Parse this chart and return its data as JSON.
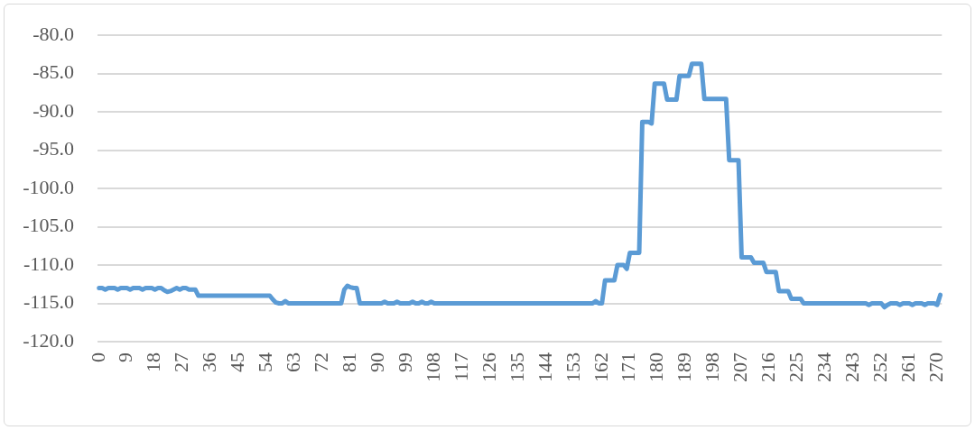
{
  "chart_data": {
    "type": "line",
    "categories": [
      "0",
      null,
      null,
      null,
      null,
      null,
      null,
      null,
      null,
      "9",
      null,
      null,
      null,
      null,
      null,
      null,
      null,
      null,
      "18",
      null,
      null,
      null,
      null,
      null,
      null,
      null,
      null,
      "27",
      null,
      null,
      null,
      null,
      null,
      null,
      null,
      null,
      "36",
      null,
      null,
      null,
      null,
      null,
      null,
      null,
      null,
      "45",
      null,
      null,
      null,
      null,
      null,
      null,
      null,
      null,
      "54",
      null,
      null,
      null,
      null,
      null,
      null,
      null,
      null,
      "63",
      null,
      null,
      null,
      null,
      null,
      null,
      null,
      null,
      "72",
      null,
      null,
      null,
      null,
      null,
      null,
      null,
      null,
      "81",
      null,
      null,
      null,
      null,
      null,
      null,
      null,
      null,
      "90",
      null,
      null,
      null,
      null,
      null,
      null,
      null,
      null,
      "99",
      null,
      null,
      null,
      null,
      null,
      null,
      null,
      null,
      "108",
      null,
      null,
      null,
      null,
      null,
      null,
      null,
      null,
      "117",
      null,
      null,
      null,
      null,
      null,
      null,
      null,
      null,
      "126",
      null,
      null,
      null,
      null,
      null,
      null,
      null,
      null,
      "135",
      null,
      null,
      null,
      null,
      null,
      null,
      null,
      null,
      "144",
      null,
      null,
      null,
      null,
      null,
      null,
      null,
      null,
      "153",
      null,
      null,
      null,
      null,
      null,
      null,
      null,
      null,
      "162",
      null,
      null,
      null,
      null,
      null,
      null,
      null,
      null,
      "171",
      null,
      null,
      null,
      null,
      null,
      null,
      null,
      null,
      "180",
      null,
      null,
      null,
      null,
      null,
      null,
      null,
      null,
      "189",
      null,
      null,
      null,
      null,
      null,
      null,
      null,
      null,
      "198",
      null,
      null,
      null,
      null,
      null,
      null,
      null,
      null,
      "207",
      null,
      null,
      null,
      null,
      null,
      null,
      null,
      null,
      "216",
      null,
      null,
      null,
      null,
      null,
      null,
      null,
      null,
      "225",
      null,
      null,
      null,
      null,
      null,
      null,
      null,
      null,
      "234",
      null,
      null,
      null,
      null,
      null,
      null,
      null,
      null,
      "243",
      null,
      null,
      null,
      null,
      null,
      null,
      null,
      null,
      "252",
      null,
      null,
      null,
      null,
      null,
      null,
      null,
      null,
      "261",
      null,
      null,
      null,
      null,
      null,
      null,
      null,
      null,
      "270",
      null
    ],
    "series": [
      {
        "color": "#5b9bd5",
        "values": [
          -113,
          -113,
          -113.2,
          -113,
          -113,
          -113,
          -113.2,
          -113,
          -113,
          -113,
          -113.2,
          -113,
          -113,
          -113,
          -113.2,
          -113,
          -113,
          -113,
          -113.2,
          -113,
          -113,
          -113.3,
          -113.5,
          -113.4,
          -113.2,
          -113,
          -113.2,
          -113,
          -113,
          -113.2,
          -113.2,
          -113.2,
          -114,
          -114,
          -114,
          -114,
          -114,
          -114,
          -114,
          -114,
          -114,
          -114,
          -114,
          -114,
          -114,
          -114,
          -114,
          -114,
          -114,
          -114,
          -114,
          -114,
          -114,
          -114,
          -114,
          -114,
          -114.5,
          -114.9,
          -115,
          -115,
          -114.7,
          -115,
          -115,
          -115,
          -115,
          -115,
          -115,
          -115,
          -115,
          -115,
          -115,
          -115,
          -115,
          -115,
          -115,
          -115,
          -115,
          -115,
          -115,
          -113.2,
          -112.7,
          -112.9,
          -113,
          -113,
          -115,
          -115,
          -115,
          -115,
          -115,
          -115,
          -115,
          -115,
          -114.8,
          -115,
          -115,
          -115,
          -114.8,
          -115,
          -115,
          -115,
          -115,
          -114.8,
          -115,
          -115,
          -114.8,
          -115,
          -115,
          -114.8,
          -115,
          -115,
          -115,
          -115,
          -115,
          -115,
          -115,
          -115,
          -115,
          -115,
          -115,
          -115,
          -115,
          -115,
          -115,
          -115,
          -115,
          -115,
          -115,
          -115,
          -115,
          -115,
          -115,
          -115,
          -115,
          -115,
          -115,
          -115,
          -115,
          -115,
          -115,
          -115,
          -115,
          -115,
          -115,
          -115,
          -115,
          -115,
          -115,
          -115,
          -115,
          -115,
          -115,
          -115,
          -115,
          -115,
          -115,
          -115,
          -115,
          -115,
          -115,
          -115,
          -114.7,
          -115,
          -115,
          -112,
          -112,
          -112,
          -112,
          -110,
          -110,
          -110,
          -110.5,
          -108.4,
          -108.4,
          -108.4,
          -108.4,
          -91.3,
          -91.3,
          -91.3,
          -91.5,
          -86.3,
          -86.3,
          -86.3,
          -86.3,
          -88.4,
          -88.4,
          -88.4,
          -88.4,
          -85.3,
          -85.3,
          -85.3,
          -85.3,
          -83.7,
          -83.7,
          -83.7,
          -83.7,
          -88.3,
          -88.3,
          -88.3,
          -88.3,
          -88.3,
          -88.3,
          -88.3,
          -88.3,
          -96.3,
          -96.3,
          -96.3,
          -96.3,
          -109,
          -109,
          -109,
          -109,
          -109.7,
          -109.7,
          -109.7,
          -109.7,
          -110.9,
          -110.9,
          -110.9,
          -110.9,
          -113.4,
          -113.4,
          -113.4,
          -113.4,
          -114.4,
          -114.4,
          -114.4,
          -114.4,
          -115,
          -115,
          -115,
          -115,
          -115,
          -115,
          -115,
          -115,
          -115,
          -115,
          -115,
          -115,
          -115,
          -115,
          -115,
          -115,
          -115,
          -115,
          -115,
          -115,
          -115,
          -115.2,
          -115,
          -115,
          -115,
          -115,
          -115.5,
          -115.2,
          -115,
          -115,
          -115,
          -115.2,
          -115,
          -115,
          -115,
          -115.2,
          -115,
          -115,
          -115,
          -115.2,
          -115,
          -115,
          -115,
          -115.2,
          -113.9
        ]
      }
    ],
    "ylim": [
      -120,
      -80
    ],
    "yticks": [
      {
        "value": -120,
        "label": "-120.0"
      },
      {
        "value": -115,
        "label": "-115.0"
      },
      {
        "value": -110,
        "label": "-110.0"
      },
      {
        "value": -105,
        "label": "-105.0"
      },
      {
        "value": -100,
        "label": "-100.0"
      },
      {
        "value": -95,
        "label": "-95.0"
      },
      {
        "value": -90,
        "label": "-90.0"
      },
      {
        "value": -85,
        "label": "-85.0"
      },
      {
        "value": -80,
        "label": "-80.0"
      }
    ],
    "grid": "y"
  }
}
